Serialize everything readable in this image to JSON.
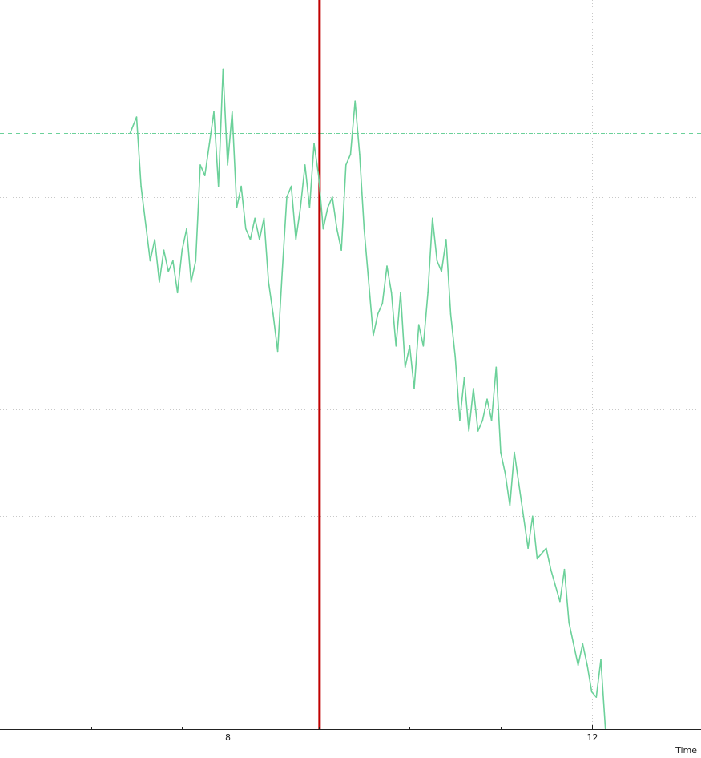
{
  "chart_data": {
    "type": "line",
    "xlabel": "Time",
    "ylabel": "",
    "x_tick_labels": [
      {
        "x": 8,
        "label": "8"
      },
      {
        "x": 12,
        "label": "12"
      }
    ],
    "x_minor_ticks": [
      6.5,
      7.5,
      9,
      10,
      11
    ],
    "xlim": [
      5.5,
      13.2
    ],
    "ylim": [
      0,
      6.85
    ],
    "grid": true,
    "series": [
      {
        "color": "#6cd19a",
        "x": [
          6.93,
          7.0,
          7.05,
          7.1,
          7.15,
          7.2,
          7.25,
          7.3,
          7.35,
          7.4,
          7.45,
          7.5,
          7.55,
          7.6,
          7.65,
          7.7,
          7.75,
          7.8,
          7.85,
          7.9,
          7.95,
          8.0,
          8.05,
          8.1,
          8.15,
          8.2,
          8.25,
          8.3,
          8.35,
          8.4,
          8.45,
          8.5,
          8.55,
          8.6,
          8.65,
          8.7,
          8.75,
          8.8,
          8.85,
          8.9,
          8.95,
          9.0,
          9.05,
          9.1,
          9.15,
          9.2,
          9.25,
          9.3,
          9.35,
          9.4,
          9.45,
          9.5,
          9.55,
          9.6,
          9.65,
          9.7,
          9.75,
          9.8,
          9.85,
          9.9,
          9.95,
          10.0,
          10.05,
          10.1,
          10.15,
          10.2,
          10.25,
          10.3,
          10.35,
          10.4,
          10.45,
          10.5,
          10.55,
          10.6,
          10.65,
          10.7,
          10.75,
          10.8,
          10.85,
          10.9,
          10.95,
          11.0,
          11.05,
          11.1,
          11.15,
          11.2,
          11.25,
          11.3,
          11.35,
          11.4,
          11.45,
          11.5,
          11.55,
          11.6,
          11.65,
          11.7,
          11.75,
          11.8,
          11.85,
          11.9,
          11.95,
          12.0,
          12.05,
          12.1,
          12.15
        ],
        "y": [
          5.6,
          5.75,
          5.1,
          4.75,
          4.4,
          4.6,
          4.2,
          4.5,
          4.3,
          4.4,
          4.1,
          4.5,
          4.7,
          4.2,
          4.4,
          5.3,
          5.2,
          5.5,
          5.8,
          5.1,
          6.2,
          5.3,
          5.8,
          4.9,
          5.1,
          4.7,
          4.6,
          4.8,
          4.6,
          4.8,
          4.2,
          3.9,
          3.55,
          4.3,
          5.0,
          5.1,
          4.6,
          4.9,
          5.3,
          4.9,
          5.5,
          5.2,
          4.7,
          4.9,
          5.0,
          4.7,
          4.5,
          5.3,
          5.4,
          5.9,
          5.4,
          4.7,
          4.2,
          3.7,
          3.9,
          4.0,
          4.35,
          4.1,
          3.6,
          4.1,
          3.4,
          3.6,
          3.2,
          3.8,
          3.6,
          4.1,
          4.8,
          4.4,
          4.3,
          4.6,
          3.9,
          3.5,
          2.9,
          3.3,
          2.8,
          3.2,
          2.8,
          2.9,
          3.1,
          2.9,
          3.4,
          2.6,
          2.4,
          2.1,
          2.6,
          2.3,
          2.0,
          1.7,
          2.0,
          1.6,
          1.65,
          1.7,
          1.5,
          1.35,
          1.2,
          1.5,
          1.0,
          0.8,
          0.6,
          0.8,
          0.6,
          0.35,
          0.3,
          0.65,
          0.0
        ]
      }
    ],
    "reference_lines": [
      {
        "kind": "horizontal",
        "y": 5.6,
        "color": "#6cd19a",
        "style": "dash-dot"
      },
      {
        "kind": "vertical",
        "x": 9.01,
        "color": "#c00000"
      }
    ]
  }
}
